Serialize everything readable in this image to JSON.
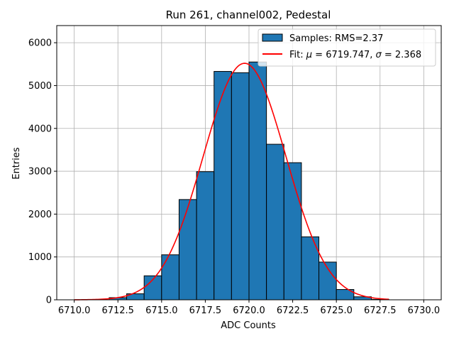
{
  "chart_data": {
    "type": "bar",
    "title": "Run 261, channel002, Pedestal",
    "xlabel": "ADC Counts",
    "ylabel": "Entries",
    "xlim": [
      6709.0,
      6731.0
    ],
    "ylim": [
      0,
      6400
    ],
    "grid": true,
    "xticks": [
      6710.0,
      6712.5,
      6715.0,
      6717.5,
      6720.0,
      6722.5,
      6725.0,
      6727.5,
      6730.0
    ],
    "xtick_labels": [
      "6710.0",
      "6712.5",
      "6715.0",
      "6717.5",
      "6720.0",
      "6722.5",
      "6725.0",
      "6727.5",
      "6730.0"
    ],
    "yticks": [
      0,
      1000,
      2000,
      3000,
      4000,
      5000,
      6000
    ],
    "ytick_labels": [
      "0",
      "1000",
      "2000",
      "3000",
      "4000",
      "5000",
      "6000"
    ],
    "histogram": {
      "name": "Samples: RMS=2.37",
      "color": "#1f77b4",
      "edge_color": "#000000",
      "bin_edges": [
        6710,
        6711,
        6712,
        6713,
        6714,
        6715,
        6716,
        6717,
        6718,
        6719,
        6720,
        6721,
        6722,
        6723,
        6724,
        6725,
        6726,
        6727,
        6728,
        6729,
        6730
      ],
      "counts": [
        0,
        0,
        50,
        140,
        560,
        1050,
        2340,
        2990,
        5330,
        5300,
        5550,
        3630,
        3200,
        1470,
        880,
        240,
        70,
        10,
        0,
        0
      ]
    },
    "fit": {
      "name": "Fit: μ = 6719.747, σ = 2.368",
      "legend_prefix": "Fit: ",
      "legend_mu_symbol": "μ",
      "legend_mu_value": " = 6719.747, ",
      "legend_sigma_symbol": "σ",
      "legend_sigma_value": " = 2.368",
      "color": "#ff0000",
      "mu": 6719.747,
      "sigma": 2.368,
      "amplitude": 5520,
      "x_range": [
        6710,
        6728
      ]
    },
    "legend_position": "top-right"
  }
}
